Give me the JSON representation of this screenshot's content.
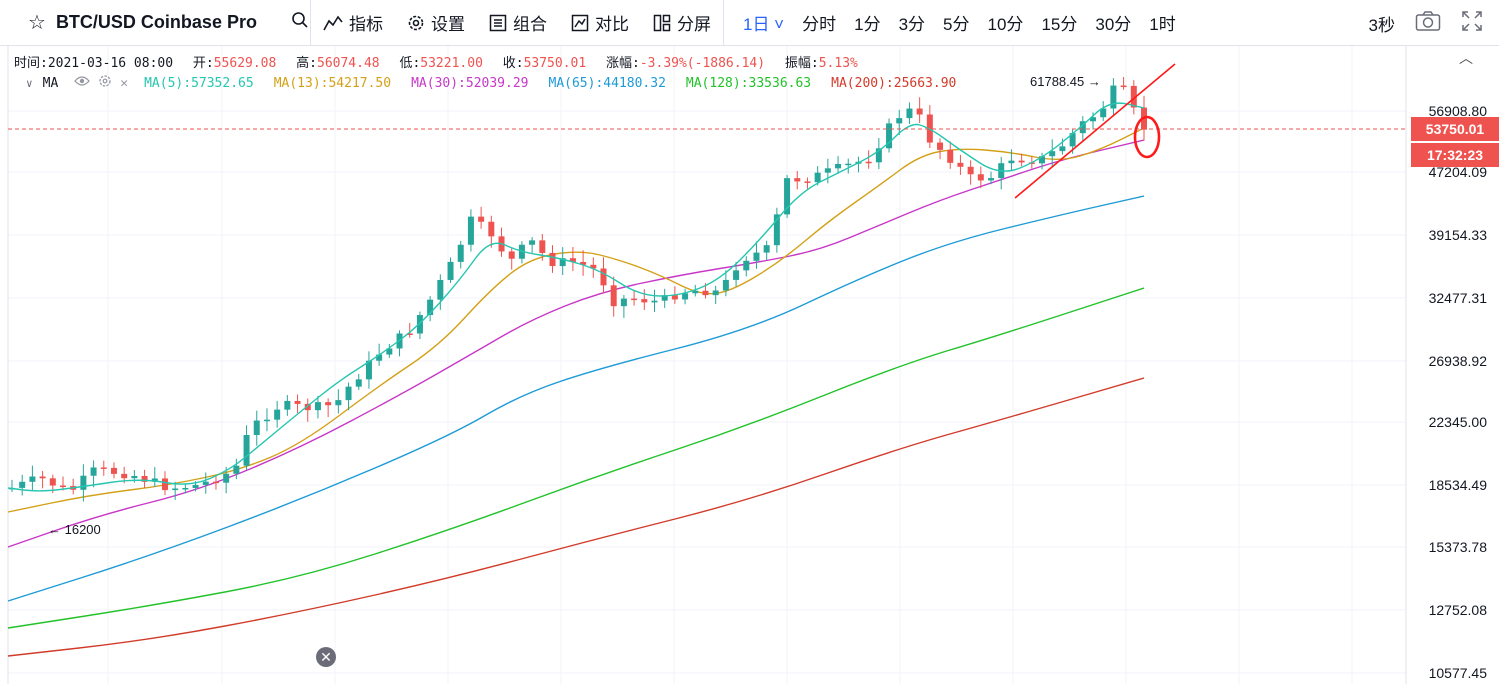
{
  "toolbar": {
    "symbol": "BTC/USD  Coinbase Pro",
    "indicators_label": "指标",
    "settings_label": "设置",
    "combine_label": "组合",
    "compare_label": "对比",
    "split_label": "分屏",
    "intervals": [
      {
        "label": "1日 ˅",
        "active": true
      },
      {
        "label": "分时",
        "active": false
      },
      {
        "label": "1分",
        "active": false
      },
      {
        "label": "3分",
        "active": false
      },
      {
        "label": "5分",
        "active": false
      },
      {
        "label": "10分",
        "active": false
      },
      {
        "label": "15分",
        "active": false
      },
      {
        "label": "30分",
        "active": false
      },
      {
        "label": "1时",
        "active": false
      }
    ],
    "refresh": "3秒"
  },
  "ohlc": {
    "time_label": "时间:",
    "time": "2021-03-16 08:00",
    "open_label": "开:",
    "open": "55629.08",
    "high_label": "高:",
    "high": "56074.48",
    "low_label": "低:",
    "low": "53221.00",
    "close_label": "收:",
    "close": "53750.01",
    "change_label": "涨幅:",
    "change": "-3.39%(-1886.14)",
    "amplitude_label": "振幅:",
    "amplitude": "5.13%"
  },
  "ma_legend": {
    "label": "MA",
    "items": [
      {
        "text": "MA(5):57352.65",
        "color": "#26c6b0"
      },
      {
        "text": "MA(13):54217.50",
        "color": "#d4a017"
      },
      {
        "text": "MA(30):52039.29",
        "color": "#c837c8"
      },
      {
        "text": "MA(65):44180.32",
        "color": "#1e9bd7"
      },
      {
        "text": "MA(128):33536.63",
        "color": "#22c22a"
      },
      {
        "text": "MA(200):25663.90",
        "color": "#d23b2a"
      }
    ]
  },
  "axis": {
    "ticks": [
      "56908.80",
      "47204.09",
      "39154.33",
      "32477.31",
      "26938.92",
      "22345.00",
      "18534.49",
      "15373.78",
      "12752.08",
      "10577.45"
    ],
    "last_price": "53750.01",
    "countdown": "17:32:23"
  },
  "annotations": {
    "high_marker": "61788.45 →",
    "low_marker": "← 16200"
  },
  "colors": {
    "up": "#26a69a",
    "down": "#ef5350",
    "accent": "#2962ff"
  },
  "close_icon": "✕",
  "collapse_icon": "︿"
}
